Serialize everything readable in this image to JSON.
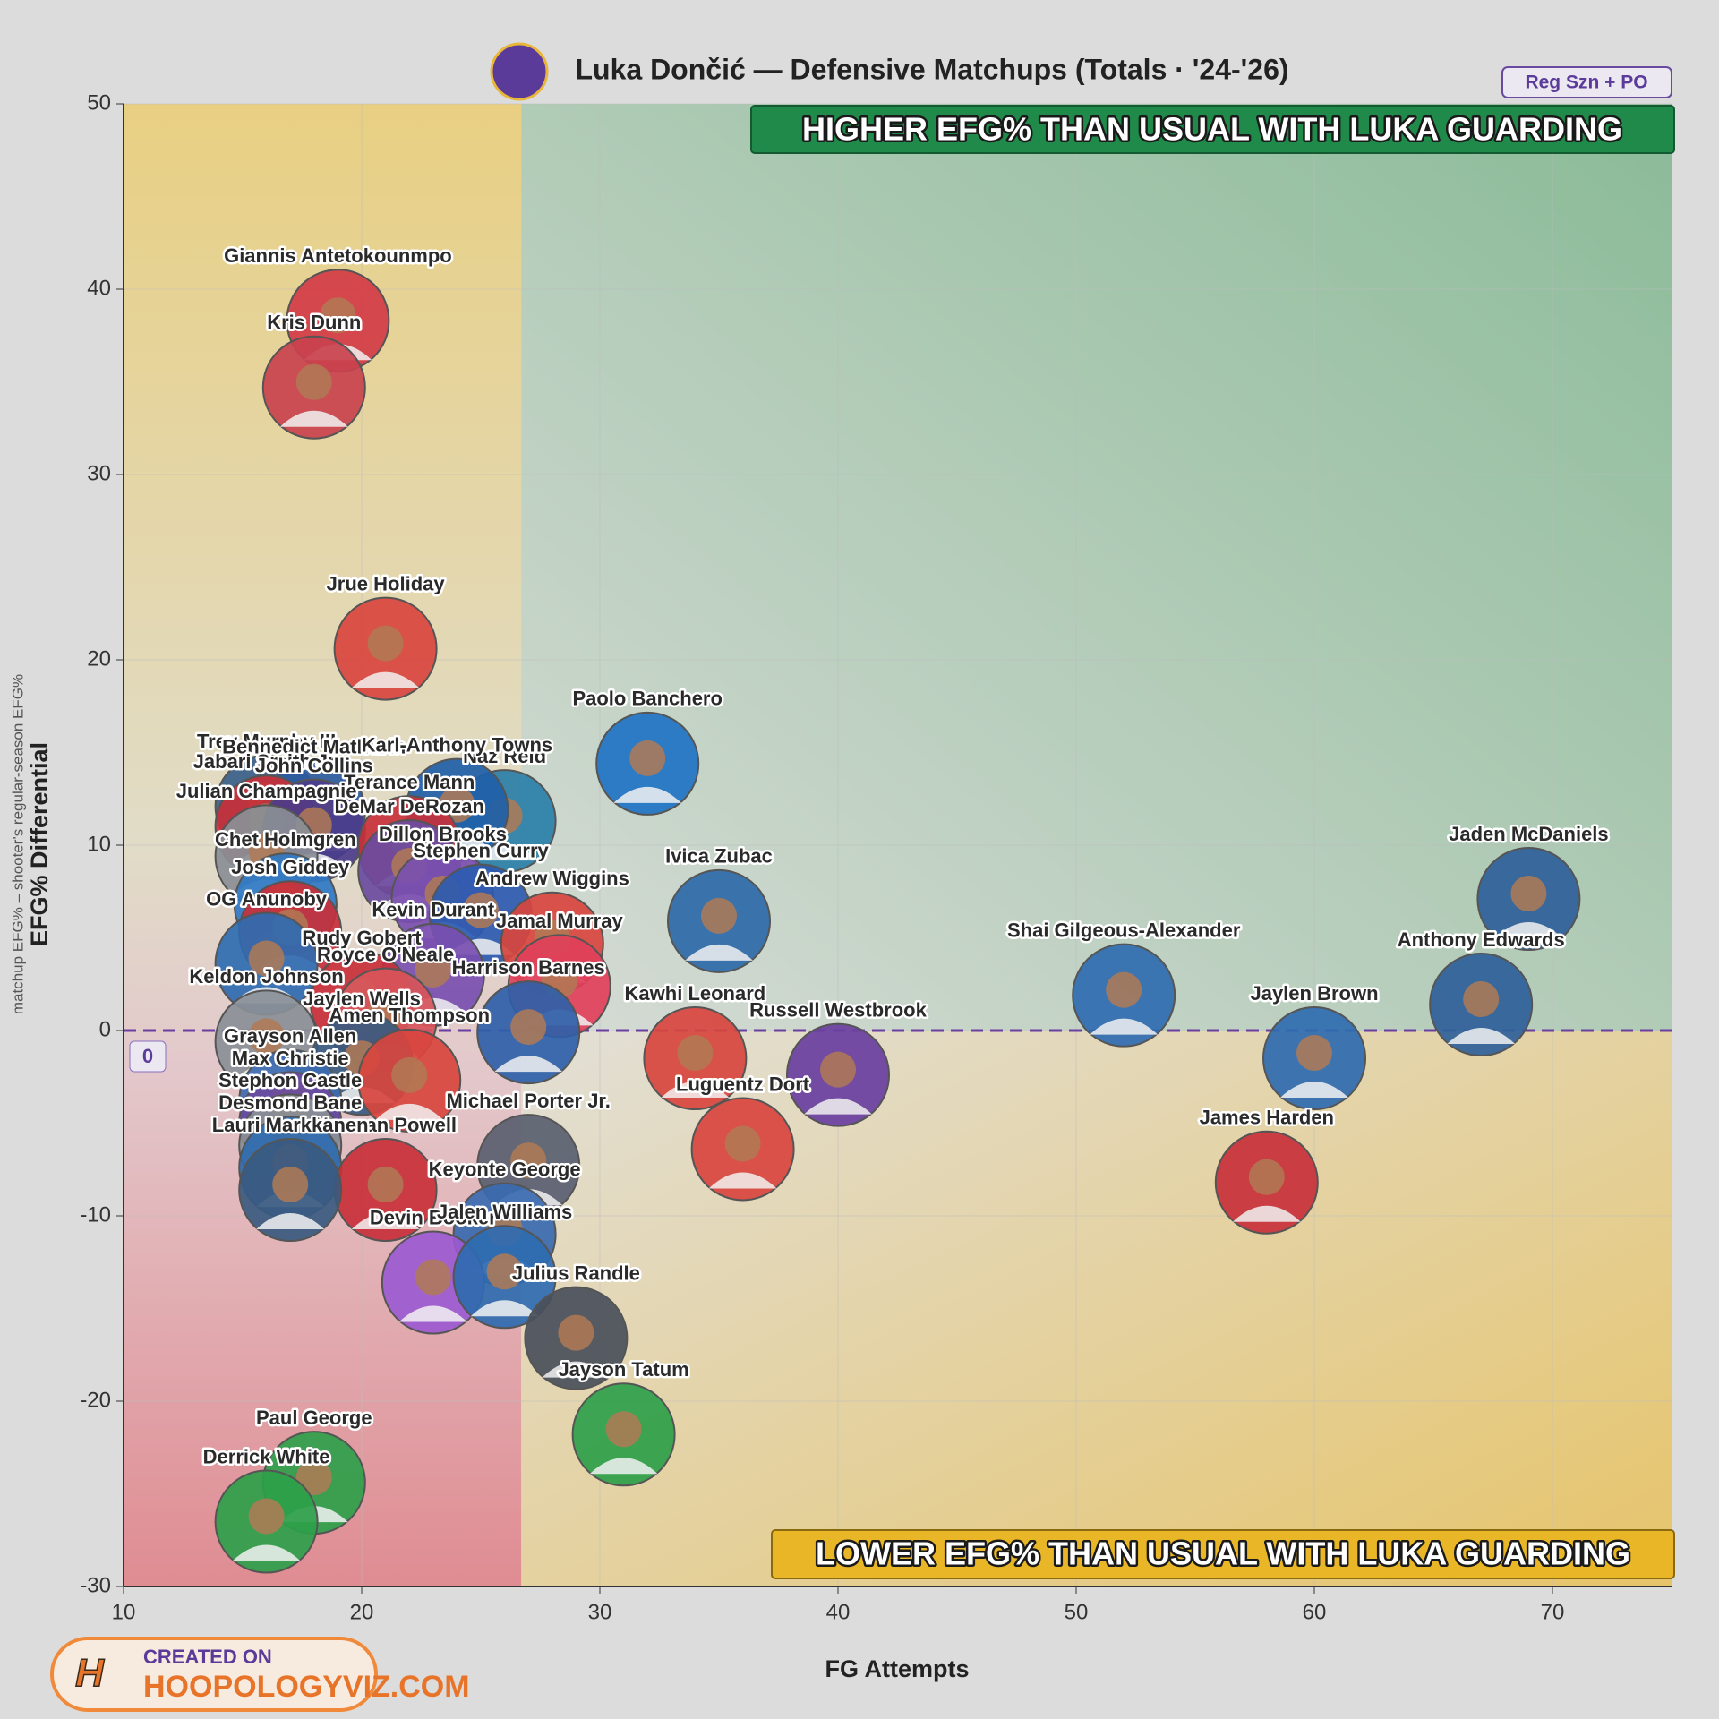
{
  "chart_data": {
    "type": "scatter",
    "title": "Luka Dončić — Defensive Matchups (Totals · '24-'26)",
    "badge": "Reg Szn + PO",
    "x_label": "FG Attempts",
    "y_label": "EFG% Differential",
    "y_sublabel": "matchup EFG% – shooter's regular-season EFG%",
    "annotations": {
      "upper": "HIGHER EFG% THAN USUAL WITH LUKA GUARDING",
      "lower": "LOWER EFG% THAN USUAL WITH LUKA GUARDING"
    },
    "watermark": {
      "top": "CREATED ON",
      "bottom": "HOOPOLOGYVIZ.COM"
    },
    "reference_line": {
      "value": 0,
      "label": "0"
    },
    "x_split": 26.7,
    "xlim": [
      10,
      75
    ],
    "ylim": [
      -30,
      50
    ],
    "xticks": [
      10,
      20,
      30,
      40,
      50,
      60,
      70
    ],
    "yticks": [
      -30,
      -20,
      -10,
      0,
      10,
      20,
      30,
      40,
      50
    ],
    "grid": true,
    "point_labels": [
      "Giannis Antetokounmpo",
      "Kris Dunn",
      "Jrue Holiday",
      "Trey Murphy III",
      "Bennedict Mathurin",
      "Jabari Smith Jr.",
      "Naz Reid",
      "Karl-Anthony Towns",
      "Paolo Banchero",
      "John Collins",
      "Terance Mann",
      "Julian Champagnie",
      "DeMar DeRozan",
      "Chet Holmgren",
      "Dillon Brooks",
      "Stephen Curry",
      "Josh Giddey",
      "Andrew Wiggins",
      "Jamal Murray",
      "OG Anunoby",
      "Ivica Zubac",
      "Kevin Durant",
      "Rudy Gobert",
      "Royce O'Neale",
      "Keldon Johnson",
      "Kawhi Leonard",
      "Russell Westbrook",
      "Jaylen Wells",
      "Amen Thompson",
      "Harrison Barnes",
      "Michael Porter Jr.",
      "Grayson Allen",
      "Max Christie",
      "Stephon Castle",
      "Desmond Bane",
      "Norman Powell",
      "Lauri Markkanen",
      "Keyonte George",
      "Devin Booker",
      "Jalen Williams",
      "Julius Randle",
      "Luguentz Dort",
      "Jayson Tatum",
      "Paul George",
      "Derrick White",
      "Shai Gilgeous-Alexander",
      "Jaden McDaniels",
      "Anthony Edwards",
      "Jaylen Brown",
      "James Harden"
    ],
    "x": [
      19.0,
      18.0,
      21.0,
      16.0,
      18.0,
      16.0,
      26.0,
      24.0,
      32.0,
      18.0,
      22.0,
      16.0,
      22.0,
      16.8,
      23.4,
      25.0,
      17.0,
      28.0,
      28.3,
      16.0,
      35.0,
      23.0,
      20.0,
      21.0,
      16.0,
      34.0,
      40.0,
      20.0,
      22.0,
      27.0,
      27.0,
      17.0,
      17.0,
      17.0,
      17.0,
      21.0,
      17.0,
      26.0,
      23.0,
      26.0,
      29.0,
      36.0,
      31.0,
      18.0,
      16.0,
      52.0,
      69.0,
      67.0,
      60.0,
      58.0
    ],
    "values": [
      38.3,
      34.7,
      20.6,
      12.1,
      11.8,
      11.0,
      11.3,
      11.9,
      14.4,
      10.8,
      9.9,
      9.4,
      8.6,
      6.8,
      7.1,
      6.2,
      5.3,
      4.7,
      2.4,
      3.6,
      5.9,
      3.0,
      1.5,
      0.6,
      -0.6,
      -1.5,
      -2.4,
      -1.8,
      -2.7,
      -0.1,
      -7.3,
      -3.8,
      -5.0,
      -6.2,
      -7.4,
      -8.6,
      -8.6,
      -11.0,
      -13.6,
      -13.3,
      -16.6,
      -6.4,
      -21.8,
      -24.4,
      -26.5,
      1.9,
      7.1,
      1.4,
      -1.5,
      -8.2
    ],
    "colors": [
      "#d23b45",
      "#c9424e",
      "#d8453e",
      "#3a5f8a",
      "#2d5aa0",
      "#c8303a",
      "#2a7fa8",
      "#1f5fa8",
      "#1f73c4",
      "#4b3c8a",
      "#c8303a",
      "#8a8f96",
      "#6a4ba0",
      "#2f78c4",
      "#7a4fb0",
      "#2c5bb0",
      "#c8303a",
      "#d8453e",
      "#e0405a",
      "#2f6bb0",
      "#2e6aa8",
      "#7a4fb0",
      "#c8303a",
      "#d8555a",
      "#8a8f96",
      "#d8453e",
      "#6a3fa0",
      "#3a5a80",
      "#d8453e",
      "#2f5fa8",
      "#5a6070",
      "#3d6ab0",
      "#6a4ba0",
      "#8a8f96",
      "#2f6bb0",
      "#c8303a",
      "#3a5a80",
      "#3a6ab0",
      "#9b5ad0",
      "#2f6bb0",
      "#4a4f5a",
      "#d8453e",
      "#2ea04a",
      "#2ea04a",
      "#2ea04a",
      "#2f6bb0",
      "#2f5f9a",
      "#2f5f9a",
      "#2f6bb0",
      "#c8303a"
    ]
  }
}
